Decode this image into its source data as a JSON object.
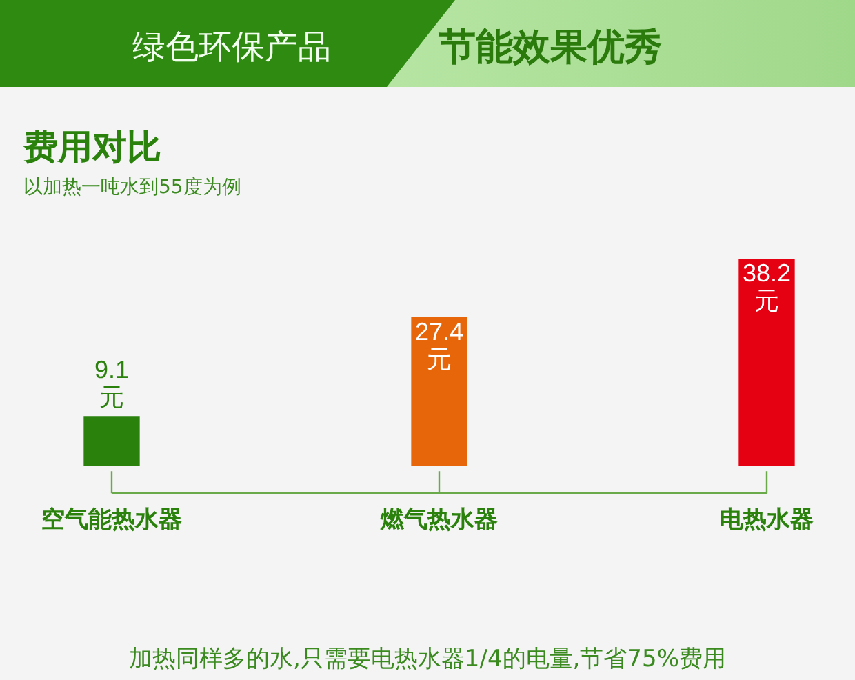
{
  "chart_data": {
    "type": "bar",
    "title": "费用对比",
    "subtitle": "以加热一吨水到55度为例",
    "categories": [
      "空气能热水器",
      "燃气热水器",
      "电热水器"
    ],
    "values": [
      9.1,
      27.4,
      38.2
    ],
    "colors": [
      "#2a820c",
      "#e8660a",
      "#e50012"
    ],
    "value_labels": [
      "9.1元",
      "27.4元",
      "38.2元"
    ],
    "annotations": [
      "绿色环保产品",
      "节能效果优秀",
      "加热同样多的水,只需要电热水器1/4的电量,节省75%费用"
    ],
    "grid": false,
    "legend": false
  }
}
